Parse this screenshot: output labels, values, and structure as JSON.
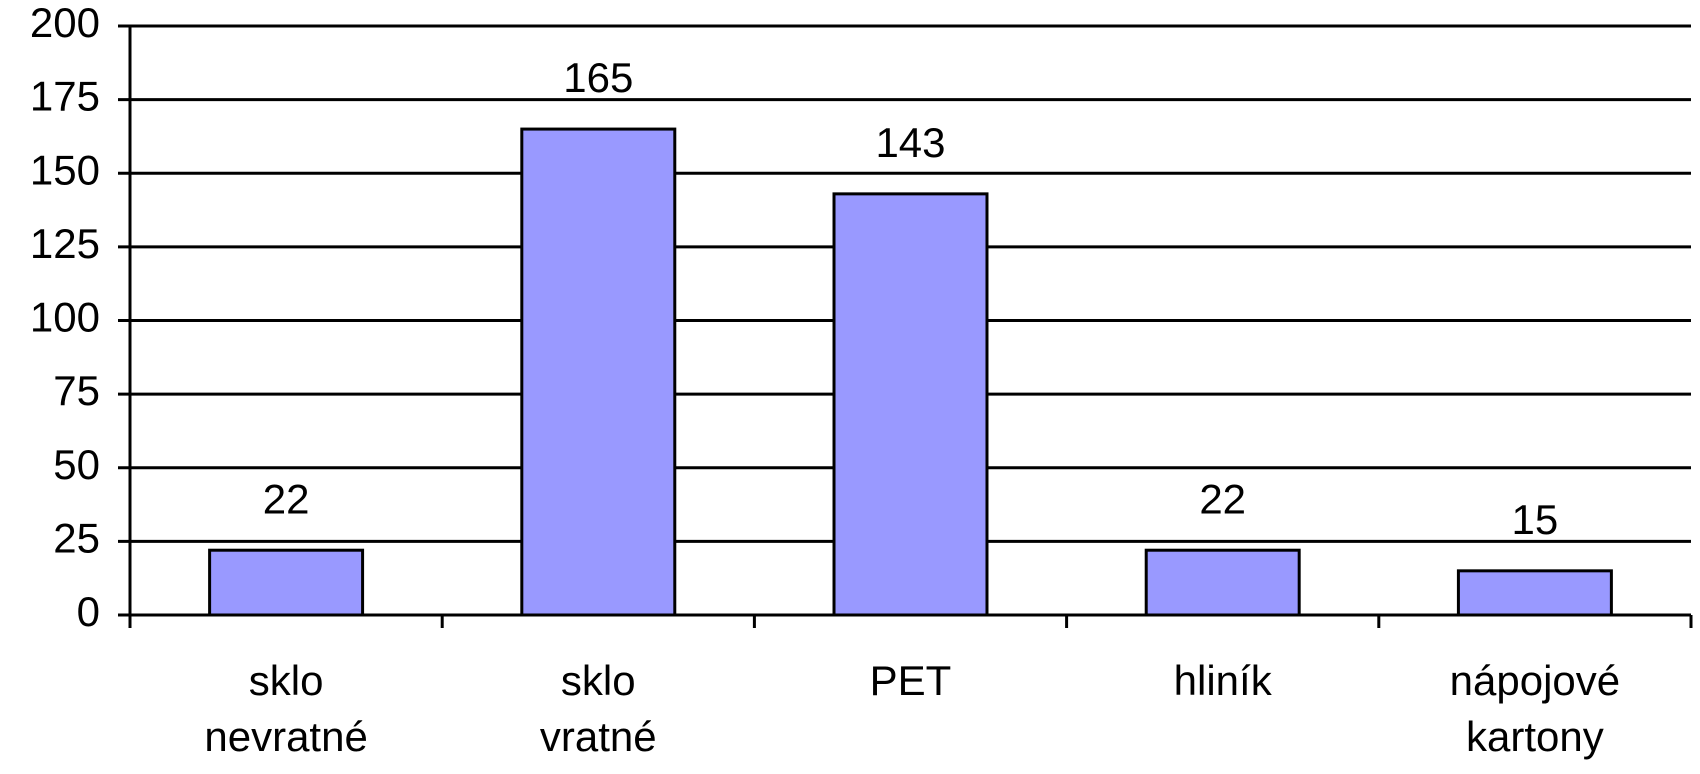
{
  "chart_data": {
    "type": "bar",
    "categories": [
      "sklo nevratné",
      "sklo vratné",
      "PET",
      "hliník",
      "nápojové kartony"
    ],
    "values": [
      22,
      165,
      143,
      22,
      15
    ],
    "color": "#9999ff",
    "ylim": [
      0,
      200
    ],
    "yticks": [
      0,
      25,
      50,
      75,
      100,
      125,
      150,
      175,
      200
    ],
    "grid": true,
    "data_labels": true
  }
}
